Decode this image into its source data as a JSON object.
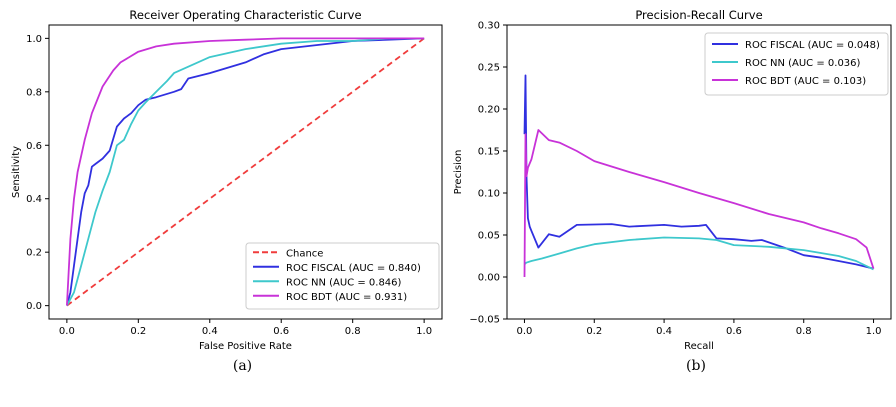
{
  "chart_data": [
    {
      "type": "line",
      "title": "Receiver Operating Characteristic Curve",
      "xlabel": "False Positive Rate",
      "ylabel": "Sensitivity",
      "xlim": [
        -0.05,
        1.05
      ],
      "ylim": [
        -0.05,
        1.05
      ],
      "xticks": [
        "0.0",
        "0.2",
        "0.4",
        "0.6",
        "0.8",
        "1.0"
      ],
      "yticks": [
        "0.0",
        "0.2",
        "0.4",
        "0.6",
        "0.8",
        "1.0"
      ],
      "caption": "(a)",
      "legend_position": "lower-right",
      "series": [
        {
          "name": "Chance",
          "color": "#f03c3c",
          "dash": true,
          "x": [
            0,
            1
          ],
          "y": [
            0,
            1
          ]
        },
        {
          "name": "ROC FISCAL (AUC = 0.840)",
          "color": "#3030e0",
          "x": [
            0,
            0.01,
            0.02,
            0.03,
            0.04,
            0.05,
            0.06,
            0.07,
            0.08,
            0.1,
            0.12,
            0.14,
            0.16,
            0.18,
            0.2,
            0.22,
            0.25,
            0.3,
            0.32,
            0.34,
            0.4,
            0.5,
            0.55,
            0.6,
            0.8,
            1.0
          ],
          "y": [
            0,
            0.05,
            0.15,
            0.25,
            0.35,
            0.42,
            0.45,
            0.52,
            0.53,
            0.55,
            0.58,
            0.67,
            0.7,
            0.72,
            0.75,
            0.77,
            0.78,
            0.8,
            0.81,
            0.85,
            0.87,
            0.91,
            0.94,
            0.96,
            0.99,
            1.0
          ]
        },
        {
          "name": "ROC NN (AUC = 0.846)",
          "color": "#3ec8cc",
          "x": [
            0,
            0.02,
            0.04,
            0.06,
            0.08,
            0.1,
            0.12,
            0.14,
            0.16,
            0.18,
            0.2,
            0.22,
            0.25,
            0.28,
            0.3,
            0.35,
            0.4,
            0.5,
            0.6,
            0.7,
            0.8,
            0.9,
            1.0
          ],
          "y": [
            0,
            0.05,
            0.15,
            0.25,
            0.35,
            0.43,
            0.5,
            0.6,
            0.62,
            0.68,
            0.73,
            0.76,
            0.8,
            0.84,
            0.87,
            0.9,
            0.93,
            0.96,
            0.98,
            0.99,
            0.99,
            1.0,
            1.0
          ]
        },
        {
          "name": "ROC BDT (AUC = 0.931)",
          "color": "#c832d8",
          "x": [
            0,
            0.01,
            0.02,
            0.03,
            0.05,
            0.07,
            0.1,
            0.13,
            0.15,
            0.2,
            0.25,
            0.3,
            0.4,
            0.5,
            0.6,
            0.8,
            1.0
          ],
          "y": [
            0,
            0.25,
            0.4,
            0.5,
            0.62,
            0.72,
            0.82,
            0.88,
            0.91,
            0.95,
            0.97,
            0.98,
            0.99,
            0.995,
            1.0,
            1.0,
            1.0
          ]
        }
      ]
    },
    {
      "type": "line",
      "title": "Precision-Recall Curve",
      "xlabel": "Recall",
      "ylabel": "Precision",
      "xlim": [
        -0.05,
        1.05
      ],
      "ylim": [
        -0.05,
        0.3
      ],
      "xticks": [
        "0.0",
        "0.2",
        "0.4",
        "0.6",
        "0.8",
        "1.0"
      ],
      "yticks": [
        "−0.05",
        "0.00",
        "0.05",
        "0.10",
        "0.15",
        "0.20",
        "0.25",
        "0.30"
      ],
      "caption": "(b)",
      "legend_position": "top-right",
      "series": [
        {
          "name": "ROC FISCAL (AUC = 0.048)",
          "color": "#3030e0",
          "x": [
            0,
            0.003,
            0.006,
            0.01,
            0.015,
            0.02,
            0.04,
            0.07,
            0.1,
            0.15,
            0.25,
            0.3,
            0.4,
            0.45,
            0.5,
            0.52,
            0.55,
            0.6,
            0.65,
            0.68,
            0.75,
            0.8,
            0.85,
            0.9,
            0.95,
            1.0
          ],
          "y": [
            0.17,
            0.24,
            0.12,
            0.07,
            0.06,
            0.055,
            0.035,
            0.051,
            0.048,
            0.062,
            0.063,
            0.06,
            0.062,
            0.06,
            0.061,
            0.062,
            0.046,
            0.045,
            0.043,
            0.044,
            0.034,
            0.026,
            0.023,
            0.019,
            0.015,
            0.01
          ]
        },
        {
          "name": "ROC NN (AUC = 0.036)",
          "color": "#3ec8cc",
          "x": [
            0,
            0.005,
            0.02,
            0.05,
            0.1,
            0.15,
            0.2,
            0.3,
            0.4,
            0.5,
            0.55,
            0.6,
            0.7,
            0.8,
            0.9,
            0.95,
            1.0
          ],
          "y": [
            0.015,
            0.017,
            0.019,
            0.022,
            0.028,
            0.034,
            0.039,
            0.044,
            0.047,
            0.046,
            0.044,
            0.038,
            0.036,
            0.032,
            0.025,
            0.019,
            0.009
          ]
        },
        {
          "name": "ROC BDT (AUC = 0.103)",
          "color": "#c832d8",
          "x": [
            0,
            0.003,
            0.006,
            0.01,
            0.02,
            0.04,
            0.07,
            0.1,
            0.15,
            0.2,
            0.3,
            0.4,
            0.5,
            0.6,
            0.7,
            0.8,
            0.85,
            0.9,
            0.95,
            0.98,
            1.0
          ],
          "y": [
            0.0,
            0.17,
            0.12,
            0.13,
            0.14,
            0.175,
            0.163,
            0.16,
            0.15,
            0.138,
            0.125,
            0.113,
            0.1,
            0.088,
            0.075,
            0.065,
            0.058,
            0.052,
            0.045,
            0.035,
            0.01
          ]
        }
      ]
    }
  ]
}
